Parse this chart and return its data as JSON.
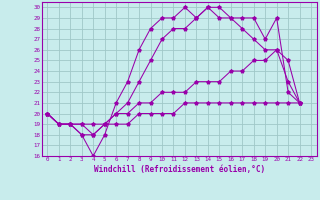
{
  "xlabel": "Windchill (Refroidissement éolien,°C)",
  "background_color": "#c8ecec",
  "grid_color": "#a0c8c8",
  "line_color": "#9900aa",
  "xlim": [
    -0.5,
    23.5
  ],
  "ylim": [
    16,
    30.5
  ],
  "xticks": [
    0,
    1,
    2,
    3,
    4,
    5,
    6,
    7,
    8,
    9,
    10,
    11,
    12,
    13,
    14,
    15,
    16,
    17,
    18,
    19,
    20,
    21,
    22,
    23
  ],
  "yticks": [
    16,
    17,
    18,
    19,
    20,
    21,
    22,
    23,
    24,
    25,
    26,
    27,
    28,
    29,
    30
  ],
  "series": [
    {
      "x": [
        0,
        1,
        2,
        3,
        4,
        5,
        6,
        7,
        8,
        9,
        10,
        11,
        12,
        13,
        14,
        15,
        16,
        17,
        18,
        19,
        20,
        21,
        22
      ],
      "y": [
        20,
        19,
        19,
        18,
        16,
        18,
        21,
        23,
        26,
        28,
        29,
        29,
        30,
        29,
        30,
        30,
        29,
        29,
        29,
        27,
        29,
        22,
        21
      ]
    },
    {
      "x": [
        0,
        1,
        2,
        3,
        4,
        5,
        6,
        7,
        8,
        9,
        10,
        11,
        12,
        13,
        14,
        15,
        16,
        17,
        18,
        19,
        20,
        21,
        22
      ],
      "y": [
        20,
        19,
        19,
        18,
        18,
        19,
        20,
        21,
        23,
        25,
        27,
        28,
        28,
        29,
        30,
        29,
        29,
        28,
        27,
        26,
        26,
        23,
        21
      ]
    },
    {
      "x": [
        0,
        1,
        2,
        3,
        4,
        5,
        6,
        7,
        8,
        9,
        10,
        11,
        12,
        13,
        14,
        15,
        16,
        17,
        18,
        19,
        20,
        21,
        22
      ],
      "y": [
        20,
        19,
        19,
        19,
        19,
        19,
        20,
        20,
        21,
        21,
        22,
        22,
        22,
        23,
        23,
        23,
        24,
        24,
        25,
        25,
        26,
        25,
        21
      ]
    },
    {
      "x": [
        0,
        1,
        2,
        3,
        4,
        5,
        6,
        7,
        8,
        9,
        10,
        11,
        12,
        13,
        14,
        15,
        16,
        17,
        18,
        19,
        20,
        21,
        22
      ],
      "y": [
        20,
        19,
        19,
        19,
        18,
        19,
        19,
        19,
        20,
        20,
        20,
        20,
        21,
        21,
        21,
        21,
        21,
        21,
        21,
        21,
        21,
        21,
        21
      ]
    }
  ]
}
